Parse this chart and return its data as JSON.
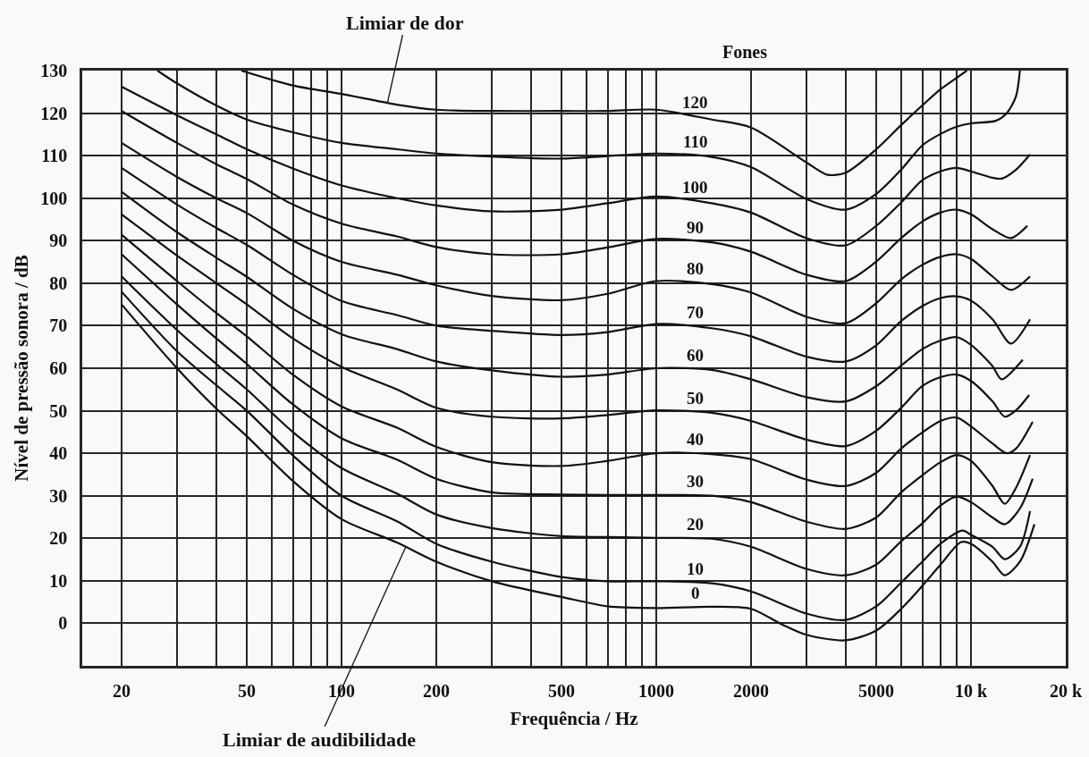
{
  "chart_data": {
    "type": "line",
    "xlabel": "Frequência / Hz",
    "ylabel": "Nível de pressão sonora / dB",
    "legend_title": "Fones",
    "log": "x",
    "xlim": [
      15,
      20000
    ],
    "ylim": [
      -10,
      130
    ],
    "xticks": [
      20,
      {
        "value": 30,
        "label": null
      },
      {
        "value": 40,
        "label": null
      },
      50,
      {
        "value": 60,
        "label": null
      },
      {
        "value": 70,
        "label": null
      },
      {
        "value": 80,
        "label": null
      },
      {
        "value": 90,
        "label": null
      },
      100,
      200,
      {
        "value": 300,
        "label": null
      },
      {
        "value": 400,
        "label": null
      },
      500,
      {
        "value": 600,
        "label": null
      },
      {
        "value": 700,
        "label": null
      },
      {
        "value": 800,
        "label": null
      },
      {
        "value": 900,
        "label": null
      },
      1000,
      2000,
      {
        "value": 3000,
        "label": null
      },
      {
        "value": 4000,
        "label": null
      },
      5000,
      {
        "value": 6000,
        "label": null
      },
      {
        "value": 7000,
        "label": null
      },
      {
        "value": 8000,
        "label": null
      },
      {
        "value": 9000,
        "label": null
      },
      {
        "value": 10000,
        "label": "10 k"
      },
      {
        "value": 20000,
        "label": "20 k"
      }
    ],
    "yticks": [
      0,
      10,
      20,
      30,
      40,
      50,
      60,
      70,
      80,
      90,
      100,
      110,
      120,
      130
    ],
    "grid": true,
    "line_style": "solid",
    "annotations": [
      {
        "text": "Limiar de dor",
        "x": 140,
        "y": 122.5
      },
      {
        "text": "Limiar de audibilidade",
        "x": 160,
        "y": 18
      }
    ],
    "series": [
      {
        "name": "120",
        "color": "#111111",
        "x": [
          48,
          70,
          100,
          150,
          200,
          300,
          500,
          700,
          1000,
          1500,
          2000,
          3000,
          3500,
          4000,
          5000,
          6000,
          7000,
          8000,
          9000,
          9700
        ],
        "values": [
          130,
          126.5,
          124.5,
          122,
          120.8,
          120.5,
          120.5,
          120.5,
          120.8,
          118.5,
          116.6,
          108.4,
          105.5,
          106,
          111.5,
          117.2,
          121.8,
          125.6,
          128.3,
          130
        ]
      },
      {
        "name": "110",
        "color": "#111111",
        "x": [
          26,
          30,
          40,
          50,
          70,
          100,
          150,
          200,
          300,
          500,
          700,
          1000,
          1500,
          2000,
          3000,
          4000,
          5000,
          6000,
          7000,
          8000,
          9000,
          10000,
          12000,
          13000,
          13900,
          14300
        ],
        "values": [
          130,
          127,
          121.8,
          118.5,
          115.5,
          113,
          111.5,
          110.5,
          109.8,
          109.3,
          109.9,
          110.5,
          109.7,
          107.3,
          99.8,
          97.3,
          101,
          106.7,
          112.4,
          115.1,
          116.8,
          117.6,
          118.2,
          120,
          124,
          130
        ]
      },
      {
        "name": "100",
        "color": "#111111",
        "x": [
          20,
          30,
          40,
          50,
          70,
          100,
          150,
          200,
          300,
          500,
          700,
          1000,
          1500,
          2000,
          3000,
          4000,
          5000,
          6000,
          7000,
          8000,
          9000,
          10000,
          11700,
          12500,
          13900,
          15400
        ],
        "values": [
          126.2,
          119.5,
          115,
          111.5,
          107,
          103,
          100,
          98.3,
          96.9,
          97.3,
          98.8,
          100.4,
          98.8,
          96.6,
          90.6,
          88.9,
          93.5,
          99,
          104.2,
          106.3,
          107.1,
          106.3,
          104.8,
          104.6,
          106.7,
          110.3
        ]
      },
      {
        "name": "90",
        "color": "#111111",
        "x": [
          20,
          30,
          40,
          50,
          70,
          100,
          150,
          200,
          300,
          500,
          700,
          1000,
          1500,
          2000,
          3000,
          4000,
          5000,
          6000,
          7000,
          8000,
          9000,
          10000,
          11700,
          13400,
          15100
        ],
        "values": [
          120.5,
          113,
          108,
          104.5,
          98.5,
          94,
          91,
          88.5,
          86.8,
          86.8,
          88.4,
          90.4,
          89.6,
          87.4,
          82,
          80.5,
          85.1,
          90.6,
          94.5,
          96.6,
          97.3,
          96.2,
          92.7,
          90.6,
          93.5
        ]
      },
      {
        "name": "80",
        "color": "#111111",
        "x": [
          20,
          30,
          40,
          50,
          70,
          100,
          150,
          200,
          300,
          500,
          700,
          1000,
          1500,
          2000,
          3000,
          4000,
          5000,
          6000,
          7000,
          8000,
          9000,
          10000,
          11700,
          13400,
          15400
        ],
        "values": [
          113,
          105,
          100,
          96.5,
          90,
          85,
          82,
          79.5,
          77,
          76,
          77.5,
          80.5,
          79.8,
          77.8,
          72.1,
          70.6,
          75.3,
          80.9,
          84.3,
          86.2,
          86.8,
          85.7,
          81.6,
          78.4,
          81.6
        ]
      },
      {
        "name": "70",
        "color": "#111111",
        "x": [
          20,
          30,
          40,
          50,
          70,
          100,
          150,
          200,
          300,
          500,
          700,
          1000,
          1500,
          2000,
          3000,
          4000,
          5000,
          6000,
          7000,
          8000,
          9000,
          10000,
          11700,
          13400,
          15400
        ],
        "values": [
          107.1,
          98.5,
          93,
          89,
          82,
          75.8,
          72.5,
          70,
          68.8,
          67.8,
          68.5,
          70.4,
          69.4,
          67.5,
          62.7,
          61.6,
          65.4,
          71.1,
          74.6,
          76.5,
          76.9,
          75.9,
          71.5,
          65.8,
          71.5
        ]
      },
      {
        "name": "60",
        "color": "#111111",
        "x": [
          20,
          30,
          40,
          50,
          70,
          100,
          150,
          200,
          300,
          500,
          700,
          1000,
          1500,
          2000,
          3000,
          4000,
          5000,
          6000,
          7000,
          8000,
          9000,
          10000,
          11700,
          12500,
          14600
        ],
        "values": [
          101.5,
          92,
          86,
          81.5,
          74,
          68,
          64.5,
          61.6,
          59.5,
          58,
          58.5,
          60,
          59.6,
          57.4,
          53.2,
          52.2,
          55.8,
          60.6,
          64.5,
          66.5,
          67.3,
          65.5,
          60.5,
          57.4,
          62
        ]
      },
      {
        "name": "50",
        "color": "#111111",
        "x": [
          20,
          30,
          40,
          50,
          70,
          100,
          150,
          200,
          300,
          500,
          700,
          1000,
          1500,
          2000,
          3000,
          4000,
          5000,
          6000,
          7000,
          8000,
          9000,
          10000,
          11700,
          12800,
          13900,
          15300
        ],
        "values": [
          96.2,
          86.5,
          80,
          75,
          67,
          60.3,
          55,
          50.7,
          48.6,
          48.2,
          49,
          50.1,
          49.5,
          47.6,
          43.2,
          41.7,
          45.3,
          50.7,
          55.8,
          57.9,
          58.5,
          57,
          52.2,
          48.6,
          50.1,
          53.7
        ]
      },
      {
        "name": "40",
        "color": "#111111",
        "x": [
          20,
          30,
          40,
          50,
          70,
          100,
          150,
          200,
          300,
          500,
          700,
          1000,
          1500,
          2000,
          3000,
          4000,
          5000,
          6000,
          7000,
          8000,
          9000,
          10000,
          11700,
          13000,
          13900,
          15700
        ],
        "values": [
          91.4,
          80.5,
          73,
          67.5,
          58.5,
          51,
          46,
          41.5,
          37.9,
          37,
          38.2,
          40,
          39.8,
          38.6,
          33.8,
          32.3,
          35.4,
          41.1,
          44.9,
          47.6,
          48.4,
          46.3,
          42.3,
          40,
          41.1,
          47.4
        ]
      },
      {
        "name": "30",
        "color": "#111111",
        "x": [
          20,
          30,
          40,
          50,
          70,
          100,
          150,
          200,
          300,
          500,
          700,
          1000,
          1500,
          2000,
          3000,
          4000,
          5000,
          6000,
          7000,
          8000,
          9000,
          10000,
          11700,
          12800,
          13900,
          15400
        ],
        "values": [
          86.8,
          75,
          67,
          61,
          51.5,
          43.5,
          38.5,
          34,
          30.8,
          30.3,
          30.2,
          30.2,
          30,
          28.5,
          23.9,
          22.2,
          24.9,
          30.8,
          34.8,
          37.9,
          39.6,
          38.2,
          32.3,
          28.1,
          31.9,
          39.6
        ]
      },
      {
        "name": "20",
        "color": "#111111",
        "x": [
          20,
          30,
          40,
          50,
          70,
          100,
          150,
          200,
          300,
          500,
          700,
          1000,
          1500,
          2000,
          3000,
          4000,
          5000,
          6000,
          7000,
          8000,
          9000,
          10000,
          11700,
          12800,
          14300,
          15700
        ],
        "values": [
          81.6,
          69,
          61,
          55,
          45,
          36.5,
          30.5,
          25.6,
          22.4,
          20.5,
          20.3,
          20.1,
          19.9,
          18,
          12.8,
          11.3,
          13.8,
          19.3,
          23.5,
          27.7,
          29.8,
          28.5,
          24.9,
          23.3,
          27,
          34
        ]
      },
      {
        "name": "10",
        "color": "#111111",
        "x": [
          20,
          30,
          40,
          50,
          70,
          100,
          150,
          200,
          300,
          500,
          700,
          1000,
          1500,
          2000,
          3000,
          4000,
          5000,
          6000,
          7000,
          8000,
          9400,
          10000,
          11700,
          12800,
          14300,
          15400
        ],
        "values": [
          78,
          64,
          56,
          50,
          39.5,
          30,
          24,
          18.7,
          14.5,
          10.9,
          9.9,
          9.9,
          9.4,
          7.5,
          2.3,
          0.8,
          4,
          9.6,
          14.5,
          18.7,
          21.8,
          20.8,
          18,
          15.1,
          18,
          26.4
        ]
      },
      {
        "name": "0",
        "color": "#111111",
        "x": [
          20,
          30,
          40,
          50,
          70,
          100,
          150,
          200,
          300,
          500,
          700,
          1000,
          1500,
          2000,
          2500,
          3000,
          4000,
          5000,
          6000,
          7000,
          8000,
          9300,
          10000,
          11700,
          12800,
          14300,
          15900
        ],
        "values": [
          75,
          60,
          50.5,
          44,
          33.5,
          24.5,
          19,
          14.5,
          9.9,
          6.2,
          4,
          3.6,
          3.9,
          3.4,
          -0.2,
          -2.7,
          -4,
          -1.7,
          3.4,
          8.8,
          13.8,
          19.1,
          18.7,
          14.5,
          11.3,
          14.5,
          23.3
        ]
      }
    ]
  }
}
